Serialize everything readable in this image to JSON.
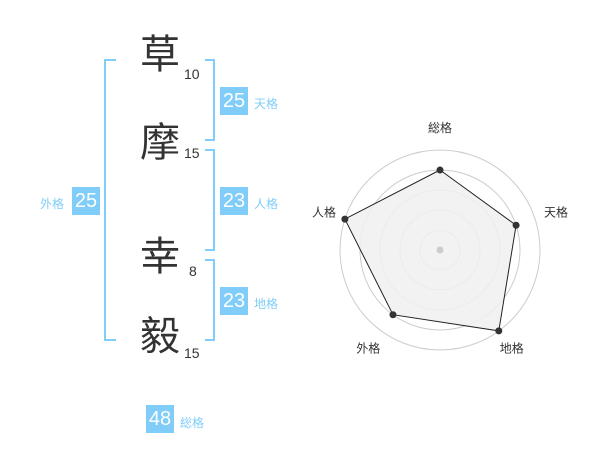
{
  "name": {
    "characters": [
      {
        "char": "草",
        "strokes": "10"
      },
      {
        "char": "摩",
        "strokes": "15"
      },
      {
        "char": "幸",
        "strokes": "8"
      },
      {
        "char": "毅",
        "strokes": "15"
      }
    ]
  },
  "fortunes": {
    "tenkaku": {
      "label": "天格",
      "value": "25"
    },
    "jinkaku": {
      "label": "人格",
      "value": "23"
    },
    "chikaku": {
      "label": "地格",
      "value": "23"
    },
    "gaikaku": {
      "label": "外格",
      "value": "25"
    },
    "soukaku": {
      "label": "総格",
      "value": "48"
    }
  },
  "colors": {
    "accent": "#7fcdf8",
    "text": "#333333",
    "radar_fill": "#f0f0f0",
    "ring": "#cccccc"
  },
  "chart_data": {
    "type": "radar",
    "axes": [
      "総格",
      "天格",
      "地格",
      "外格",
      "人格"
    ],
    "values": [
      4,
      4,
      5,
      4,
      5
    ],
    "range": [
      0,
      5
    ],
    "rings": 5
  }
}
